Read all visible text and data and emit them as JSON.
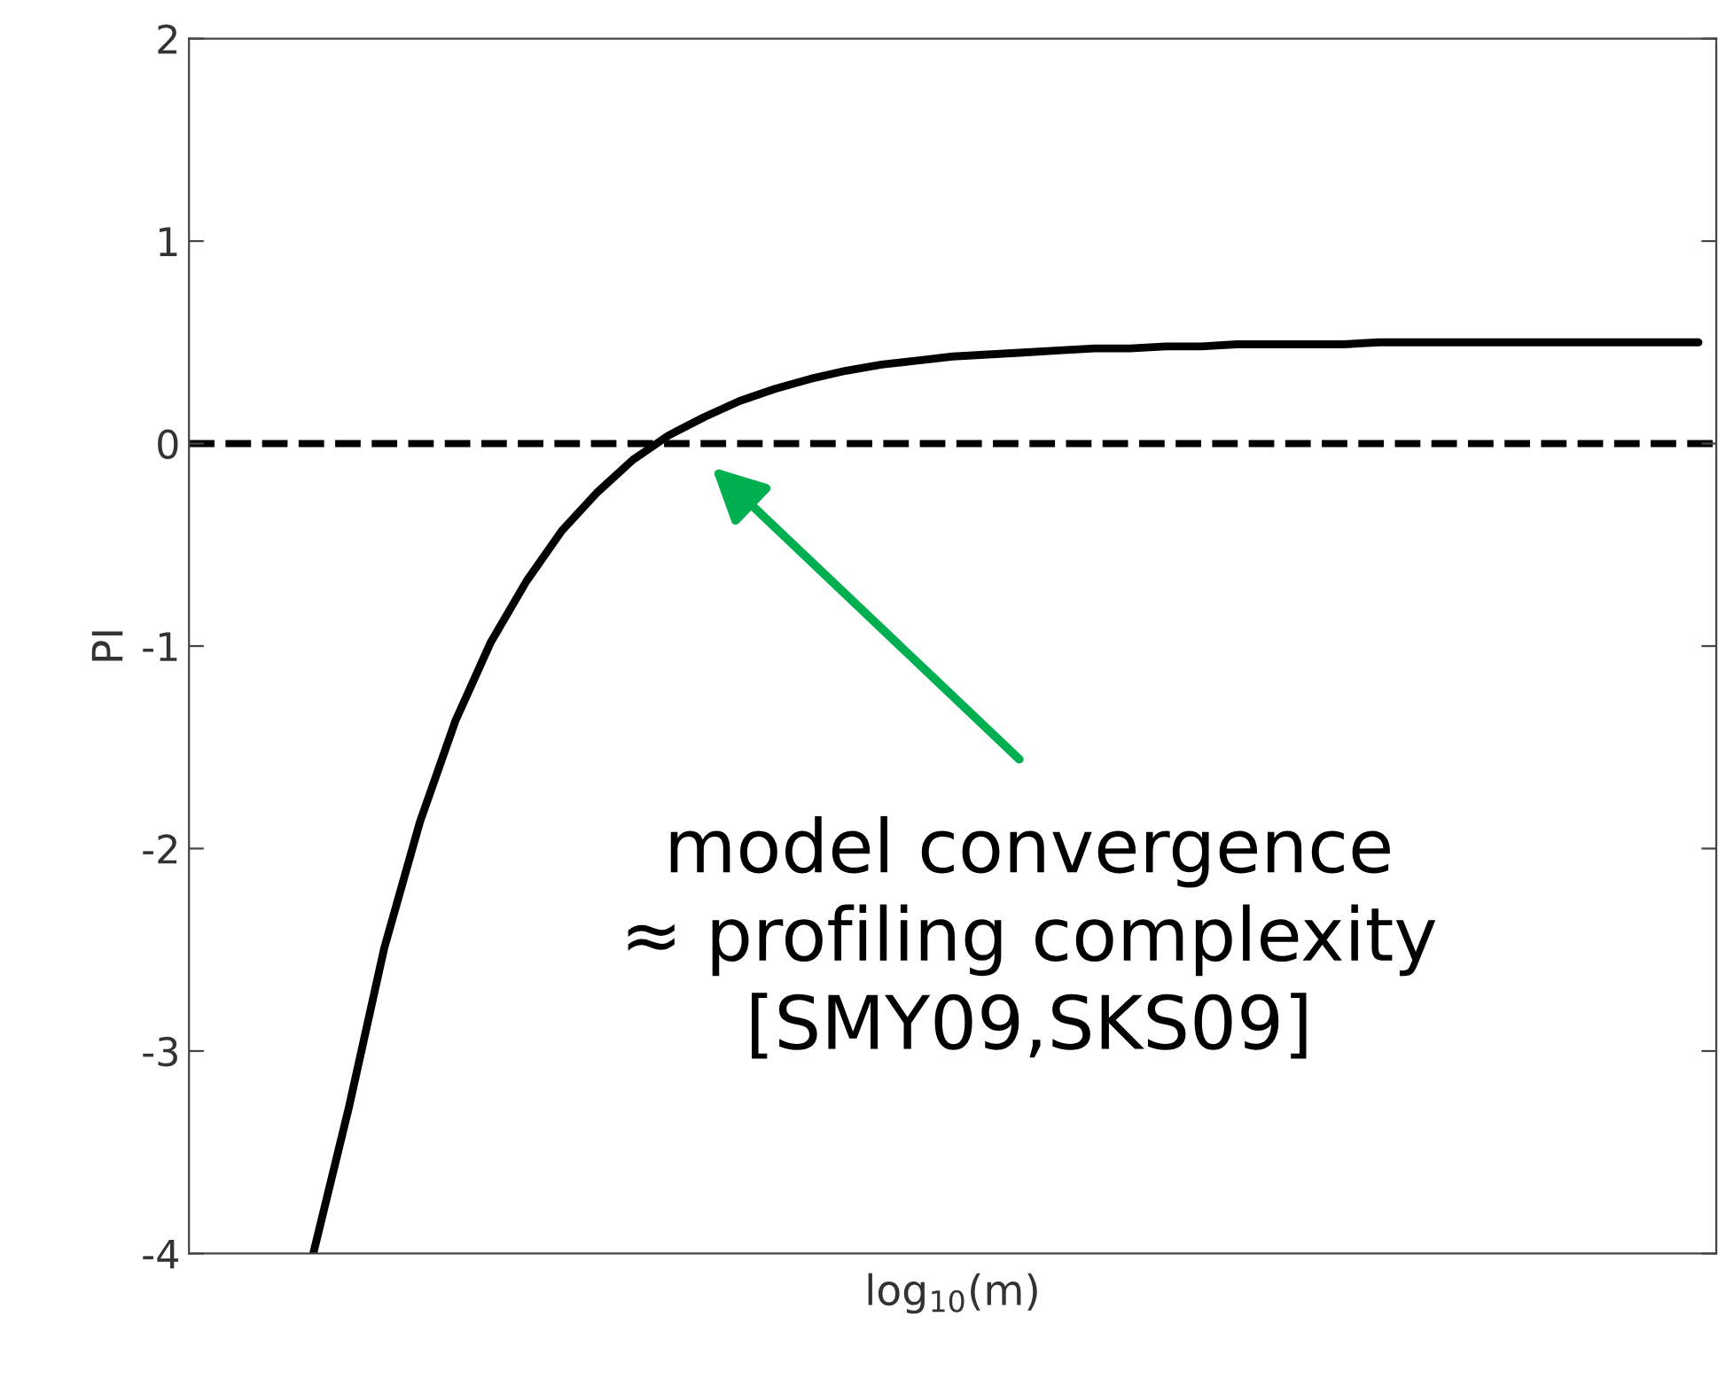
{
  "chart_data": {
    "type": "line",
    "xlabel": "log$_{10}$(m)",
    "ylabel": "PI",
    "categories": [
      null,
      null,
      null,
      null,
      null,
      null,
      null,
      null,
      null,
      null,
      null,
      null,
      null,
      null,
      null,
      null,
      null,
      null,
      null,
      null,
      null,
      null,
      null,
      null,
      null,
      null,
      null,
      null,
      null,
      null,
      null,
      null,
      null,
      null,
      null,
      null,
      null,
      null,
      null,
      null,
      null,
      null,
      null
    ],
    "series": [
      {
        "color": "#000000",
        "values": [
          null,
          null,
          null,
          -4,
          -3.28,
          -2.49,
          -1.87,
          -1.37,
          -0.98,
          -0.68,
          -0.43,
          -0.24,
          -0.08,
          0.04,
          0.13,
          0.21,
          0.27,
          0.32,
          0.36,
          0.39,
          0.41,
          0.43,
          0.44,
          0.45,
          0.46,
          0.47,
          0.47,
          0.48,
          0.48,
          0.49,
          0.49,
          0.49,
          0.49,
          0.5,
          0.5,
          0.5,
          0.5,
          0.5,
          0.5,
          0.5,
          0.5,
          0.5,
          0.5
        ]
      }
    ],
    "ylim": [
      -4,
      2
    ],
    "yticks": [
      -4,
      -3,
      -2,
      -1,
      0,
      1,
      2
    ],
    "tick_labels": "y",
    "grid": false,
    "legend": false,
    "marker": "none",
    "line_style": "solid",
    "ref_lines": [
      {
        "axis": "y",
        "value": 0,
        "color": "#000000",
        "line_style": "dashed"
      }
    ],
    "annotations": [
      "model convergence\n≈ profiling complexity\n[SMY09,SKS09]"
    ]
  }
}
